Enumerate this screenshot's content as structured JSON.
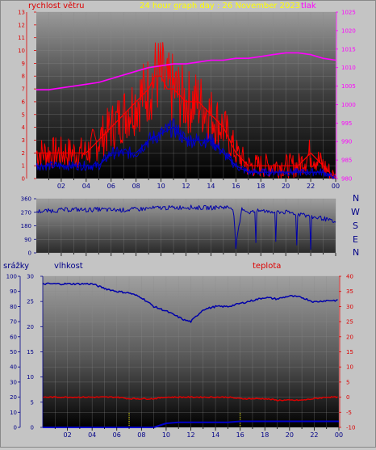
{
  "header": {
    "wind_title": "rychlost větru",
    "graph_title": "24 hour graph day : 26 November 2023",
    "pressure_title": "tlak"
  },
  "compass": [
    "N",
    "W",
    "S",
    "E",
    "N"
  ],
  "bottom_labels": {
    "rain": "srážky",
    "humidity": "vlhkost",
    "temperature": "teplota"
  },
  "colors": {
    "wind_gust": "#ff0000",
    "wind_avg": "#0000cc",
    "pressure": "#ff00ff",
    "direction": "#0000aa",
    "humidity": "#0000aa",
    "temperature": "#dd0000",
    "rain": "#0000cc",
    "title_yellow": "#ffff00"
  },
  "chart_data": [
    {
      "type": "line",
      "name": "wind_pressure",
      "x_ticks": [
        "02",
        "04",
        "06",
        "08",
        "10",
        "12",
        "14",
        "16",
        "18",
        "20",
        "22",
        "00"
      ],
      "xlim": [
        0,
        24
      ],
      "y_left_ticks": [
        "0",
        "1",
        "2",
        "3",
        "4",
        "5",
        "6",
        "7",
        "8",
        "9",
        "10",
        "11",
        "12",
        "13"
      ],
      "ylim_left": [
        0,
        13
      ],
      "y_right_ticks": [
        "980",
        "985",
        "990",
        "995",
        "1000",
        "1005",
        "1010",
        "1015",
        "1020",
        "1025"
      ],
      "ylim_right": [
        980,
        1025
      ],
      "series": [
        {
          "name": "wind gust",
          "axis": "left",
          "x": [
            0,
            1,
            2,
            3,
            4,
            5,
            6,
            7,
            8,
            9,
            9.5,
            10,
            10.5,
            11,
            12,
            13,
            14,
            15,
            15.5,
            16,
            17,
            18,
            19,
            20,
            21,
            22,
            23,
            24
          ],
          "y": [
            2,
            2,
            2,
            2,
            2,
            3,
            4,
            5,
            6,
            7,
            8,
            8,
            7,
            7,
            6,
            6,
            5,
            4,
            3,
            2,
            1,
            1,
            1,
            1,
            1,
            2,
            1,
            0
          ]
        },
        {
          "name": "wind average",
          "axis": "left",
          "x": [
            0,
            1,
            2,
            3,
            4,
            5,
            6,
            7,
            8,
            9,
            10,
            11,
            12,
            13,
            14,
            15,
            16,
            17,
            18,
            19,
            20,
            21,
            22,
            23,
            24
          ],
          "y": [
            1,
            1,
            1,
            1,
            1,
            1,
            2,
            2,
            2,
            3,
            3.5,
            4,
            3,
            3,
            3,
            2,
            1,
            0.5,
            0.5,
            0.5,
            0.5,
            0.5,
            0.5,
            0.5,
            0
          ]
        },
        {
          "name": "tlak",
          "axis": "right",
          "x": [
            0,
            1,
            2,
            3,
            4,
            5,
            6,
            7,
            8,
            9,
            10,
            11,
            12,
            13,
            14,
            15,
            16,
            17,
            18,
            19,
            20,
            21,
            22,
            23,
            24
          ],
          "y": [
            1004,
            1004,
            1004.5,
            1005,
            1005.5,
            1006,
            1007,
            1008,
            1009,
            1010,
            1010.5,
            1011,
            1011,
            1011.5,
            1012,
            1012,
            1012.5,
            1012.5,
            1013,
            1013.5,
            1014,
            1014,
            1013.5,
            1012.5,
            1012
          ]
        }
      ]
    },
    {
      "type": "line",
      "name": "wind_direction",
      "xlim": [
        0,
        24
      ],
      "y_ticks": [
        "0",
        "90",
        "180",
        "270",
        "360"
      ],
      "ylim": [
        0,
        360
      ],
      "series": [
        {
          "name": "direction",
          "x": [
            0,
            1,
            2,
            3,
            4,
            5,
            6,
            7,
            8,
            9,
            10,
            11,
            12,
            13,
            14,
            15,
            15.8,
            16,
            16.5,
            17,
            18,
            19,
            20,
            21,
            22,
            23,
            24
          ],
          "y": [
            275,
            280,
            285,
            290,
            285,
            290,
            285,
            285,
            290,
            295,
            300,
            300,
            305,
            300,
            300,
            305,
            300,
            40,
            300,
            270,
            280,
            275,
            270,
            260,
            240,
            230,
            200
          ]
        }
      ]
    },
    {
      "type": "line",
      "name": "humidity_temperature_rain",
      "x_ticks": [
        "02",
        "04",
        "06",
        "08",
        "10",
        "12",
        "14",
        "16",
        "18",
        "20",
        "22",
        "00"
      ],
      "xlim": [
        0,
        24
      ],
      "y_left_ticks": [
        "0",
        "10",
        "20",
        "30",
        "40",
        "50",
        "60",
        "70",
        "80",
        "90",
        "100"
      ],
      "ylim_left": [
        0,
        100
      ],
      "y_rain_ticks": [
        "0",
        "5",
        "10",
        "15",
        "20",
        "25",
        "30"
      ],
      "ylim_rain": [
        0,
        30
      ],
      "y_right_ticks": [
        "-10",
        "-5",
        "0",
        "5",
        "10",
        "15",
        "20",
        "25",
        "30",
        "35",
        "40"
      ],
      "ylim_right": [
        -10,
        40
      ],
      "series": [
        {
          "name": "vlhkost",
          "axis": "left",
          "x": [
            0,
            1,
            2,
            3,
            4,
            5,
            6,
            7,
            8,
            9,
            10,
            11,
            11.5,
            12,
            12.5,
            13,
            14,
            15,
            16,
            17,
            18,
            19,
            20,
            21,
            22,
            23,
            24
          ],
          "y": [
            95,
            95,
            95,
            95,
            95,
            92,
            90,
            89,
            86,
            80,
            77,
            73,
            71,
            70,
            74,
            78,
            80,
            80,
            82,
            84,
            86,
            85,
            87,
            86,
            83,
            84,
            84
          ]
        },
        {
          "name": "teplota",
          "axis": "right",
          "x": [
            0,
            1,
            2,
            3,
            4,
            5,
            6,
            7,
            8,
            9,
            10,
            11,
            12,
            13,
            14,
            15,
            16,
            17,
            18,
            19,
            20,
            21,
            22,
            23,
            24
          ],
          "y": [
            0,
            0,
            0,
            0,
            0,
            0,
            0,
            -0.5,
            -0.5,
            -0.5,
            0,
            0,
            0,
            0,
            0,
            0,
            -0.5,
            -0.5,
            -0.5,
            -1,
            -1,
            -1,
            -0.5,
            0,
            0
          ]
        },
        {
          "name": "srážky",
          "axis": "rain",
          "x": [
            0,
            9,
            10,
            11,
            12,
            13,
            14,
            15,
            16,
            17,
            18,
            19,
            20,
            21,
            22,
            23,
            24
          ],
          "y": [
            0,
            0,
            0.8,
            1,
            1,
            1,
            1,
            1,
            1.2,
            1.2,
            1.2,
            1.2,
            1.2,
            1.2,
            1.2,
            1.2,
            1.2
          ]
        }
      ]
    }
  ]
}
